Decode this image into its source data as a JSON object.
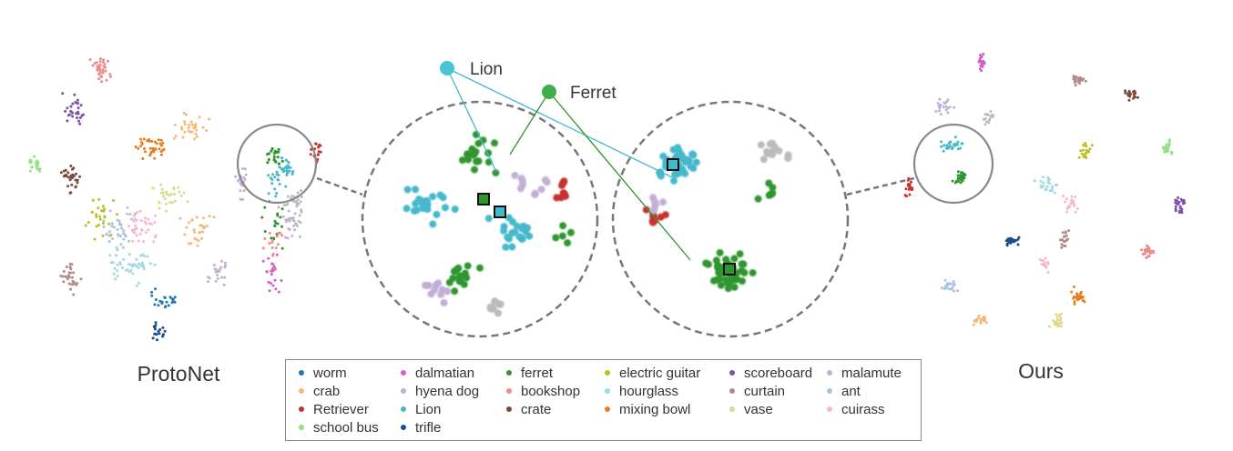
{
  "figure": {
    "left_label": "ProtoNet",
    "right_label": "Ours",
    "callout_lion": "Lion",
    "callout_ferret": "Ferret"
  },
  "colors": {
    "worm": "#1f77b4",
    "crab": "#f4b97a",
    "Retriever": "#c8322d",
    "school bus": "#98df8a",
    "dalmatian": "#d062c4",
    "hyena dog": "#c5b0d5",
    "Lion": "#45b8cc",
    "trifle": "#1a4f8b",
    "ferret": "#2f962f",
    "bookshop": "#ee8a8a",
    "crate": "#7b4a3a",
    "electric guitar": "#bcbd22",
    "hourglass": "#9edae5",
    "mixing bowl": "#e87d1e",
    "scoreboard": "#7a52a8",
    "curtain": "#b08a86",
    "vase": "#dbdb8d",
    "malamute": "#c0aed6",
    "ant": "#a8c4e0",
    "cuirass": "#f7b6d2",
    "gray": "#bbbbbb"
  },
  "legend": {
    "columns": [
      [
        {
          "label": "worm",
          "color": "#1f77b4"
        },
        {
          "label": "crab",
          "color": "#f4b97a"
        },
        {
          "label": "Retriever",
          "color": "#c8322d"
        },
        {
          "label": "school bus",
          "color": "#98df8a"
        }
      ],
      [
        {
          "label": "dalmatian",
          "color": "#d062c4"
        },
        {
          "label": "hyena dog",
          "color": "#c5b0d5"
        },
        {
          "label": "Lion",
          "color": "#45b8cc"
        },
        {
          "label": "trifle",
          "color": "#1a4f8b"
        }
      ],
      [
        {
          "label": "ferret",
          "color": "#2f962f"
        },
        {
          "label": "bookshop",
          "color": "#ee8a8a"
        },
        {
          "label": "crate",
          "color": "#7b4a3a"
        }
      ],
      [
        {
          "label": "electric guitar",
          "color": "#bcbd22"
        },
        {
          "label": "hourglass",
          "color": "#9edae5"
        },
        {
          "label": "mixing bowl",
          "color": "#e87d1e"
        }
      ],
      [
        {
          "label": "scoreboard",
          "color": "#7a52a8"
        },
        {
          "label": "curtain",
          "color": "#b08a86"
        },
        {
          "label": "vase",
          "color": "#dbdb8d"
        }
      ],
      [
        {
          "label": "malamute",
          "color": "#c0aed6"
        },
        {
          "label": "ant",
          "color": "#a8c4e0"
        },
        {
          "label": "cuirass",
          "color": "#f7b6d2"
        }
      ]
    ]
  },
  "chart_data": {
    "type": "scatter",
    "description_labels": [
      "ProtoNet",
      "Ours"
    ],
    "grid": false,
    "legend_position": "bottom",
    "series": [
      {
        "name": "worm"
      },
      {
        "name": "crab"
      },
      {
        "name": "Retriever"
      },
      {
        "name": "school bus"
      },
      {
        "name": "dalmatian"
      },
      {
        "name": "hyena dog"
      },
      {
        "name": "Lion"
      },
      {
        "name": "trifle"
      },
      {
        "name": "ferret"
      },
      {
        "name": "bookshop"
      },
      {
        "name": "crate"
      },
      {
        "name": "electric guitar"
      },
      {
        "name": "hourglass"
      },
      {
        "name": "mixing bowl"
      },
      {
        "name": "scoreboard"
      },
      {
        "name": "curtain"
      },
      {
        "name": "vase"
      },
      {
        "name": "malamute"
      },
      {
        "name": "ant"
      },
      {
        "name": "cuirass"
      }
    ]
  }
}
